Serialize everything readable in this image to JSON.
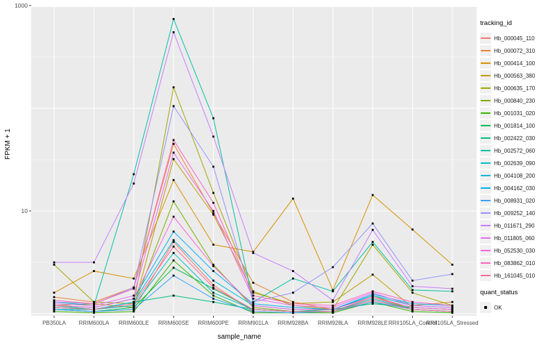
{
  "figure": {
    "xlabel": "sample_name",
    "ylabel": "FPKM + 1",
    "legend_title": "tracking_id",
    "quant_legend": {
      "title": "quant_status",
      "label": "OK"
    }
  },
  "style": {
    "panel_bg": "#EBEBEB",
    "grid_color": "#FFFFFF",
    "tick_color": "#333333",
    "tick_label_color": "#4D4D4D",
    "point_color": "#000000",
    "legend_key_bg": "#F0F0F0"
  },
  "chart_data": {
    "type": "line",
    "title": "",
    "xlabel": "sample_name",
    "ylabel": "FPKM + 1",
    "x_type": "categorical",
    "y_scale": "log10",
    "ylim": [
      1,
      1000
    ],
    "y_tick_labels": [
      {
        "value": 10,
        "label": "10"
      },
      {
        "value": 1000,
        "label": "1000"
      }
    ],
    "y_gridlines_major": [
      1,
      10,
      100,
      1000
    ],
    "y_gridlines_minor": [
      3.162,
      31.62,
      316.2
    ],
    "grid": true,
    "legend_position": "right",
    "legend_title": "tracking_id",
    "point_status_legend": {
      "title": "quant_status",
      "entries": [
        "OK"
      ]
    },
    "point_shape": "filled-square",
    "categories": [
      "PB350LA",
      "RRIM600LA",
      "RRIM600LE",
      "RRIM600SE",
      "RRIM600PE",
      "RRIM901LA",
      "RRIM928BA",
      "RRIM928LA",
      "RRIM928LE",
      "RRII105LA_Control",
      "RRII105LA_Stressed"
    ],
    "series": [
      {
        "name": "Hb_000045_110",
        "color": "#F8766D",
        "values": [
          1.1,
          1.05,
          1.1,
          5.0,
          1.9,
          1.05,
          1.02,
          1.05,
          1.45,
          1.1,
          1.05
        ]
      },
      {
        "name": "Hb_000072_310",
        "color": "#EA8331",
        "values": [
          1.45,
          1.3,
          1.8,
          45,
          9.5,
          2.0,
          1.3,
          1.1,
          1.5,
          1.2,
          1.3
        ]
      },
      {
        "name": "Hb_000414_100",
        "color": "#D89000",
        "values": [
          1.6,
          2.6,
          2.2,
          20,
          4.7,
          4.0,
          13.2,
          1.7,
          14.3,
          6.6,
          3.0
        ]
      },
      {
        "name": "Hb_000563_380",
        "color": "#C09B00",
        "values": [
          1.2,
          1.25,
          1.15,
          32,
          9.2,
          1.6,
          1.25,
          1.3,
          2.4,
          1.15,
          1.1
        ]
      },
      {
        "name": "Hb_000635_170",
        "color": "#A3A500",
        "values": [
          3.0,
          1.3,
          1.25,
          160,
          15,
          1.65,
          1.2,
          1.1,
          4.7,
          1.6,
          1.2
        ]
      },
      {
        "name": "Hb_000840_230",
        "color": "#7CAE00",
        "values": [
          1.15,
          1.1,
          1.2,
          12.4,
          3.0,
          1.15,
          1.05,
          1.1,
          1.5,
          1.1,
          1.05
        ]
      },
      {
        "name": "Hb_001031_020",
        "color": "#39B600",
        "values": [
          1.05,
          1.02,
          1.05,
          3.3,
          1.5,
          1.02,
          1.02,
          1.02,
          1.3,
          1.05,
          1.02
        ]
      },
      {
        "name": "Hb_001814_100",
        "color": "#00BB4E",
        "values": [
          1.1,
          1.05,
          1.15,
          2.8,
          1.75,
          1.1,
          1.05,
          1.05,
          1.35,
          1.1,
          1.05
        ]
      },
      {
        "name": "Hb_002422_030",
        "color": "#00BF7D",
        "values": [
          1.2,
          1.1,
          1.3,
          1.5,
          1.3,
          1.1,
          1.05,
          1.1,
          1.25,
          1.15,
          1.1
        ]
      },
      {
        "name": "Hb_002572_060",
        "color": "#00C1A3",
        "values": [
          1.3,
          1.2,
          22.8,
          740,
          80,
          1.3,
          2.2,
          1.65,
          5.0,
          1.7,
          1.65
        ]
      },
      {
        "name": "Hb_002639_090",
        "color": "#00BFC4",
        "values": [
          1.1,
          1.1,
          1.2,
          3.9,
          1.6,
          1.1,
          1.05,
          1.05,
          1.4,
          1.1,
          1.05
        ]
      },
      {
        "name": "Hb_004108_200",
        "color": "#00BAE0",
        "values": [
          1.15,
          1.1,
          1.3,
          5.2,
          2.1,
          1.2,
          1.1,
          1.1,
          1.5,
          1.2,
          1.15
        ]
      },
      {
        "name": "Hb_004162_030",
        "color": "#00B0F6",
        "values": [
          1.2,
          1.15,
          1.4,
          6.3,
          2.6,
          1.25,
          1.15,
          1.1,
          1.55,
          1.25,
          1.2
        ]
      },
      {
        "name": "Hb_008931_020",
        "color": "#35A2FF",
        "values": [
          1.1,
          1.05,
          1.1,
          2.35,
          1.4,
          1.05,
          1.02,
          1.05,
          1.3,
          1.1,
          1.05
        ]
      },
      {
        "name": "Hb_009252_140",
        "color": "#9590FF",
        "values": [
          1.3,
          1.25,
          1.8,
          105,
          27,
          1.3,
          1.6,
          2.84,
          7.55,
          2.1,
          2.43
        ]
      },
      {
        "name": "Hb_011671_290",
        "color": "#C77CFF",
        "values": [
          3.16,
          3.16,
          18.5,
          550,
          53,
          3.9,
          2.6,
          1.35,
          6.55,
          1.85,
          1.75
        ]
      },
      {
        "name": "Hb_011805_060",
        "color": "#E76BF3",
        "values": [
          1.25,
          1.2,
          1.5,
          37,
          10,
          1.4,
          1.2,
          1.15,
          1.6,
          1.2,
          1.15
        ]
      },
      {
        "name": "Hb_052530_030",
        "color": "#FA62DB",
        "values": [
          1.2,
          1.15,
          1.4,
          8.8,
          2.9,
          1.2,
          1.1,
          1.1,
          1.45,
          1.15,
          1.1
        ]
      },
      {
        "name": "Hb_083862_010",
        "color": "#FF62BC",
        "values": [
          1.35,
          1.25,
          1.75,
          49,
          12,
          1.5,
          1.25,
          1.2,
          1.65,
          1.3,
          1.2
        ]
      },
      {
        "name": "Hb_161045_010",
        "color": "#FF6A98",
        "values": [
          1.15,
          1.1,
          1.25,
          4.5,
          1.8,
          1.1,
          1.05,
          1.05,
          1.35,
          1.1,
          1.05
        ]
      }
    ]
  }
}
